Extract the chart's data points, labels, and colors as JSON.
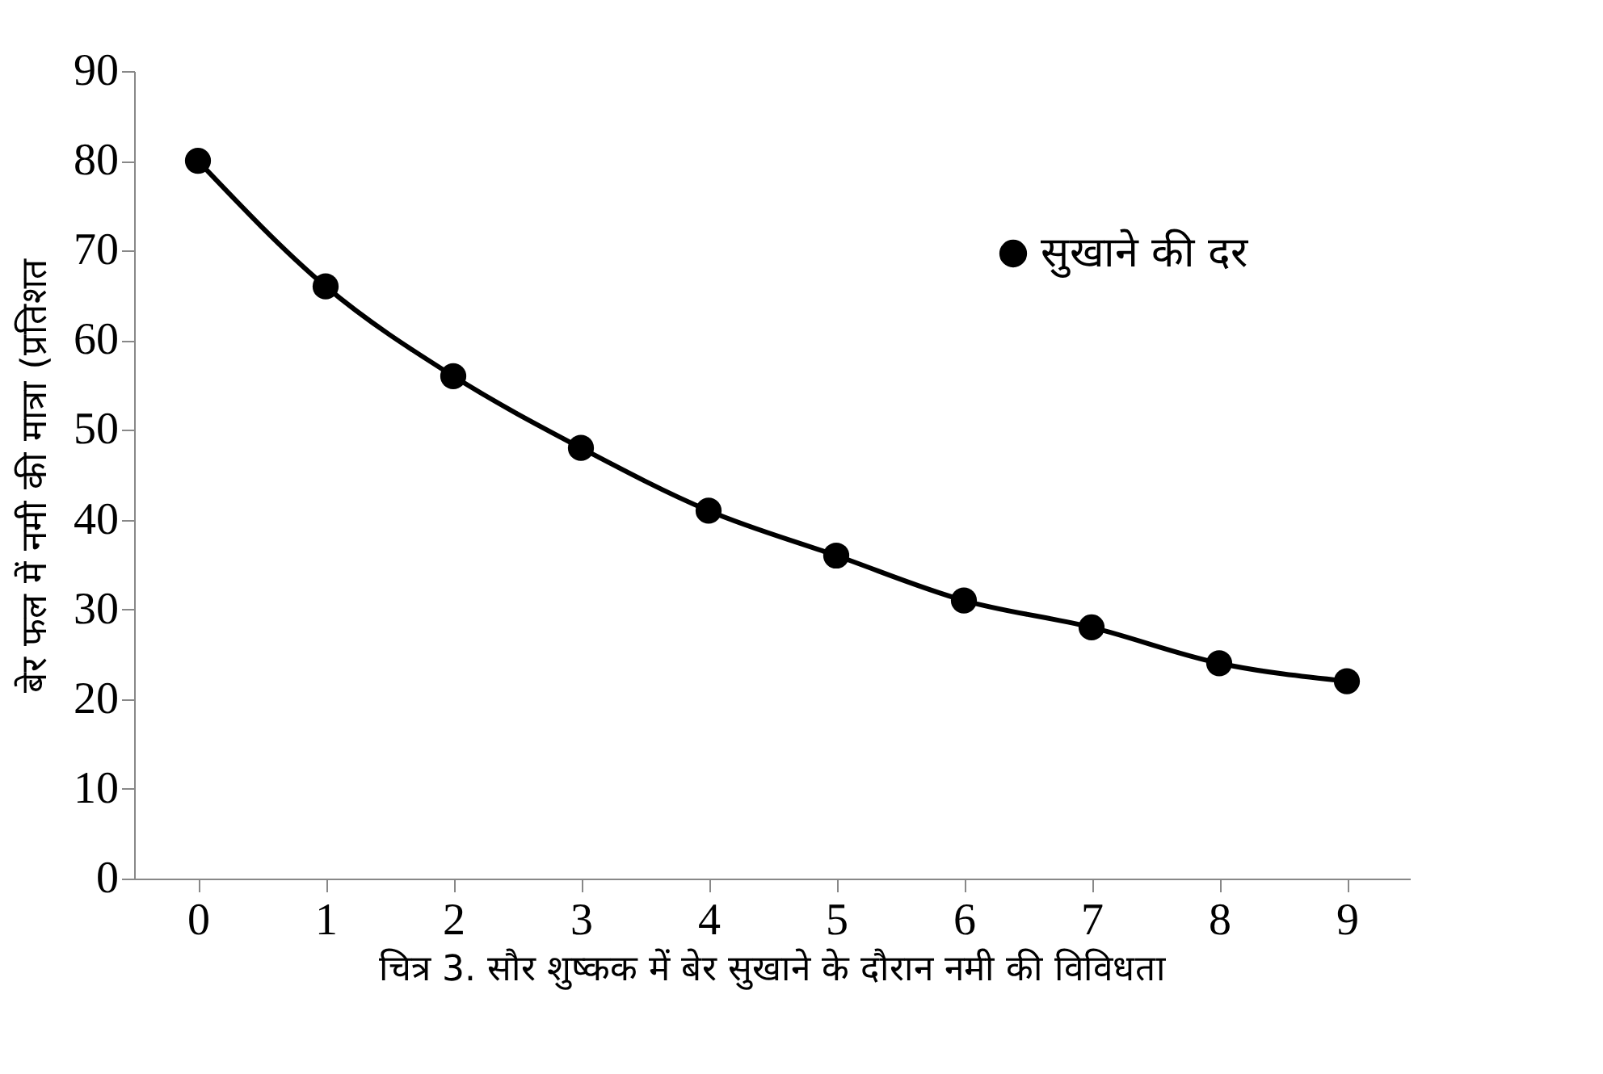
{
  "chart_data": {
    "type": "line",
    "ylabel": "बेर फल में नमी की मात्रा (प्रतिशत",
    "annotations": [
      "चित्र 3. सौर शुष्कक में बेर सुखाने के दौरान नमी की विविधता"
    ],
    "categories": [
      "0",
      "1",
      "2",
      "3",
      "4",
      "5",
      "6",
      "7",
      "8",
      "9"
    ],
    "series": [
      {
        "name": "सुखाने की दर",
        "color": "#000000",
        "values": [
          80,
          66,
          56,
          48,
          41,
          36,
          31,
          28,
          24,
          22
        ]
      }
    ],
    "ylim": [
      0,
      90
    ],
    "yticks": [
      0,
      10,
      20,
      30,
      40,
      50,
      60,
      70,
      80,
      90
    ],
    "grid": false,
    "legend": "top right",
    "marker": "circle",
    "line_style": "solid"
  }
}
